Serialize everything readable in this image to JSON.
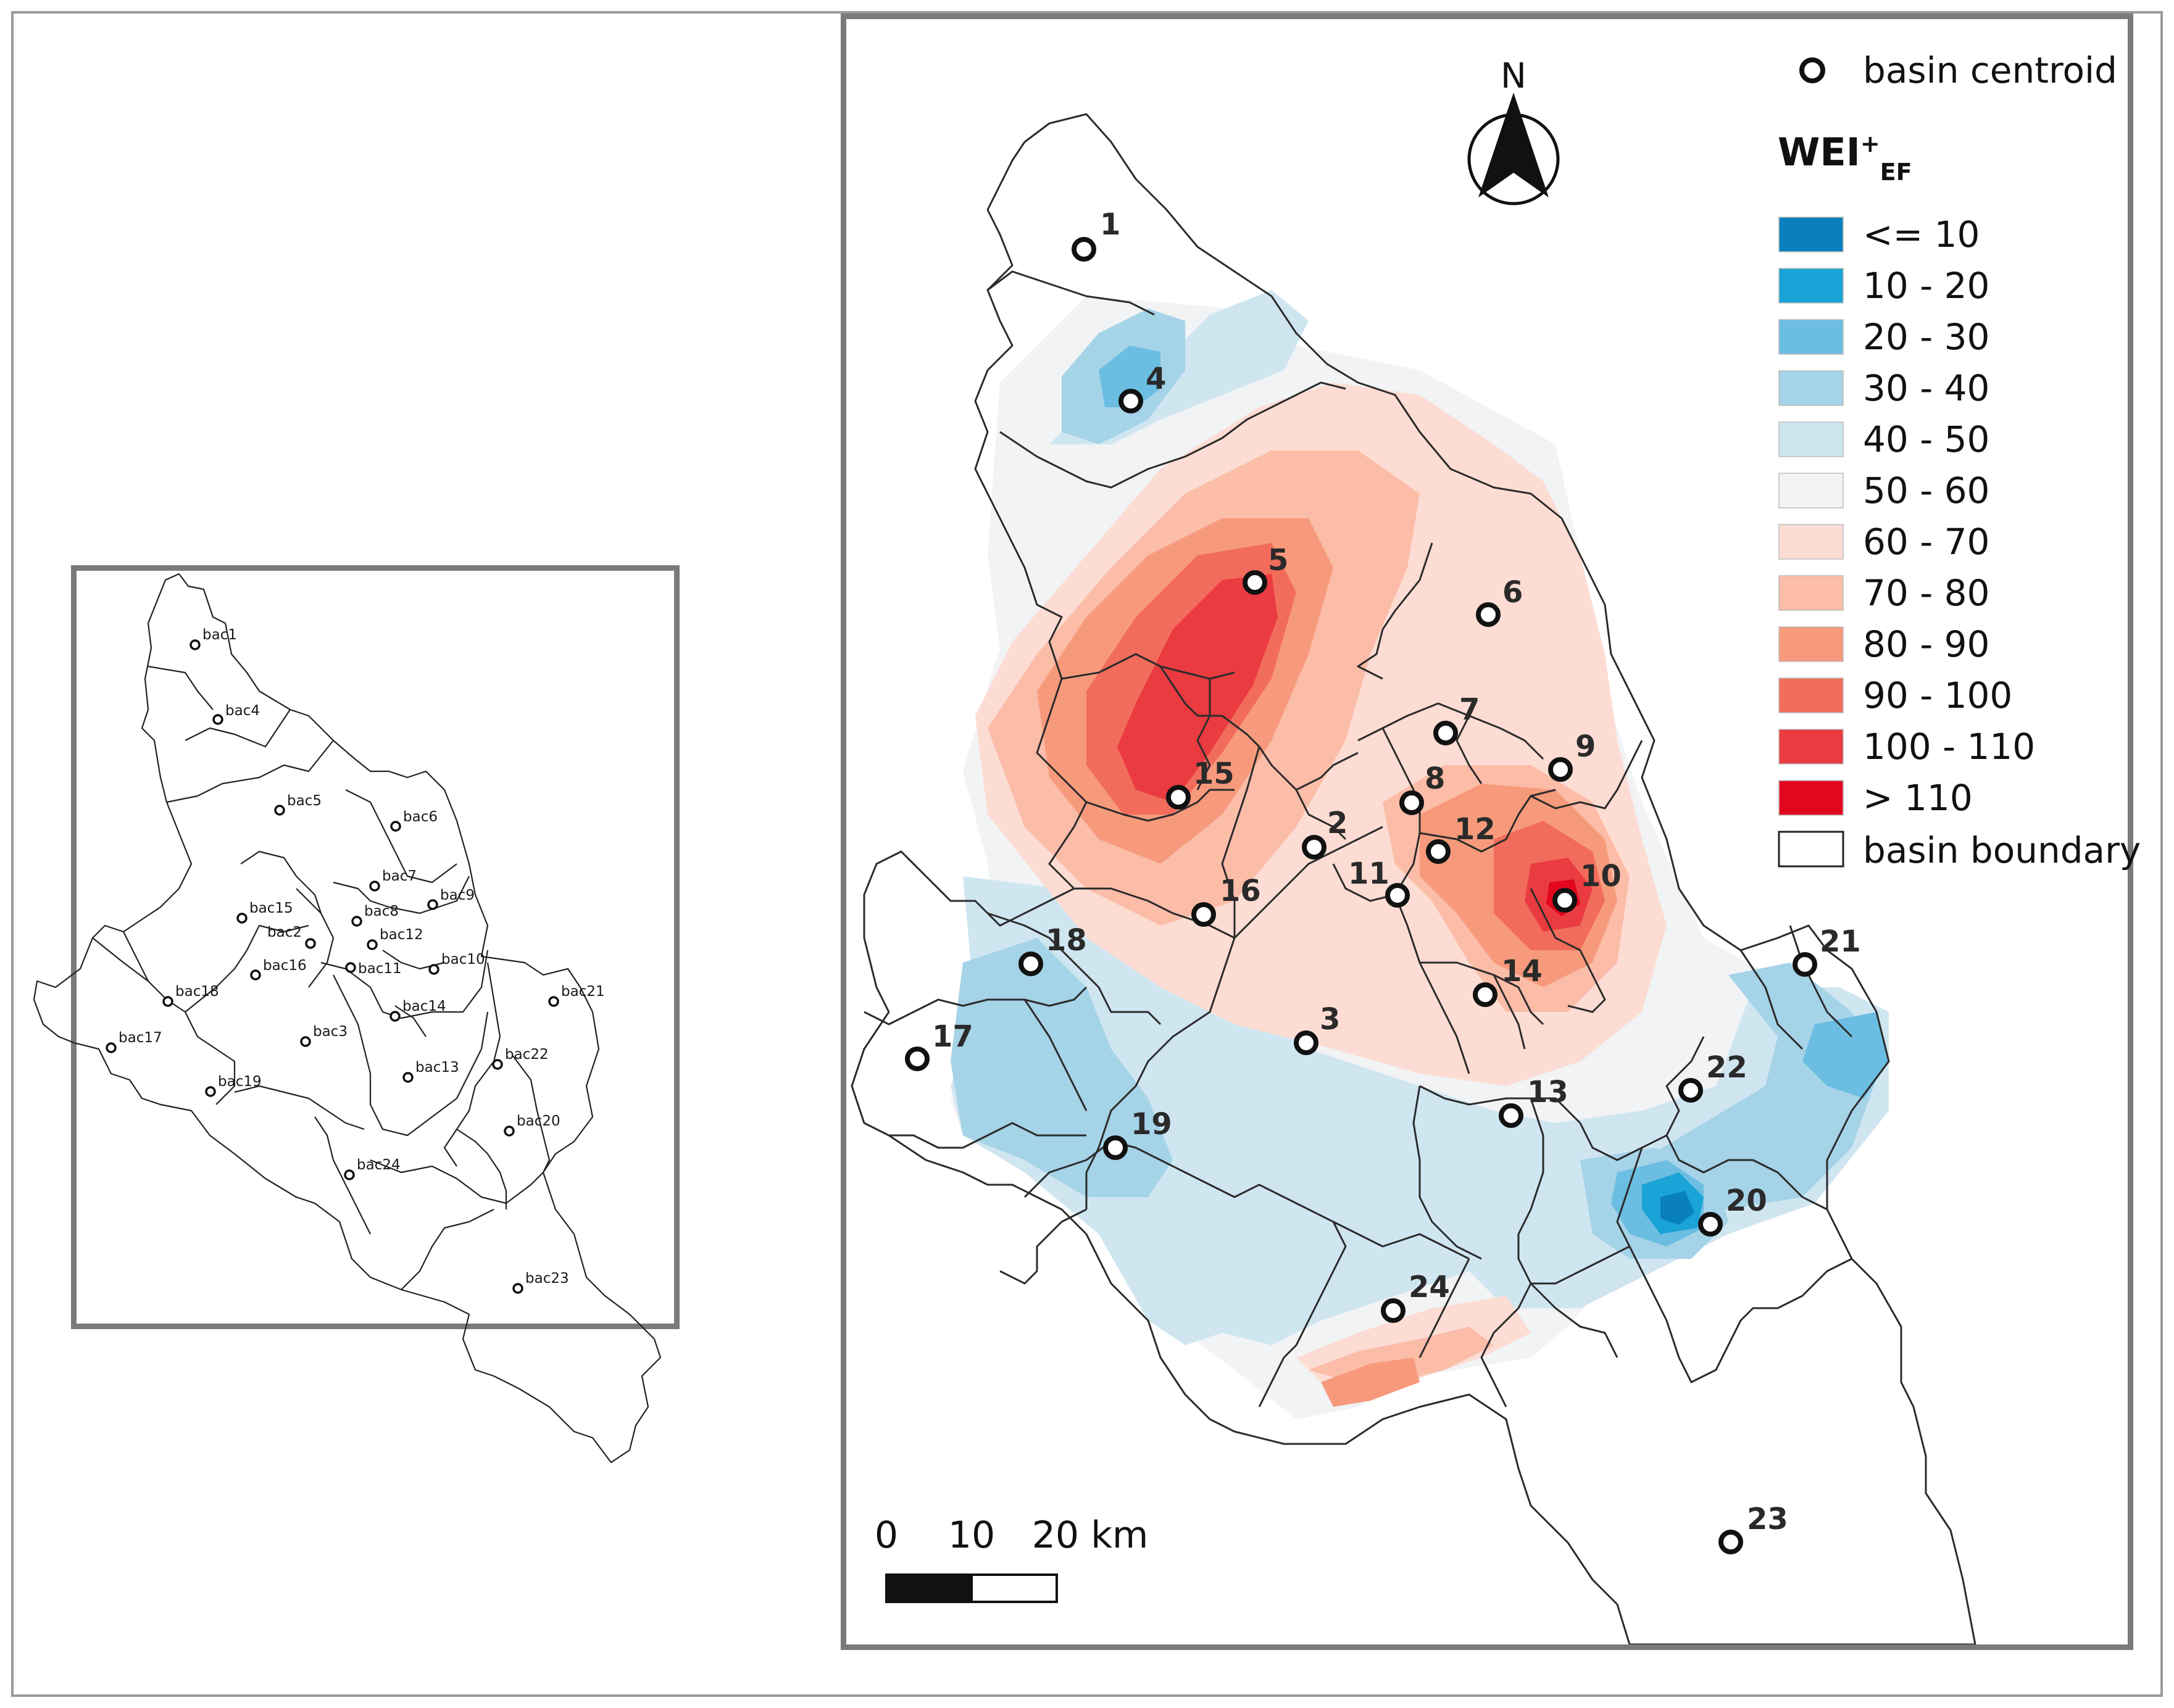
{
  "legend": {
    "centroid_label": "basin centroid",
    "title_main": "WEI",
    "title_sup": "+",
    "title_sub": "EF",
    "classes": [
      {
        "label": "<= 10",
        "color": "#0a7fbd"
      },
      {
        "label": "10 - 20",
        "color": "#1aa3d6"
      },
      {
        "label": "20 - 30",
        "color": "#6cbde2"
      },
      {
        "label": "30 - 40",
        "color": "#a5d3e8"
      },
      {
        "label": "40 - 50",
        "color": "#cfe6f1"
      },
      {
        "label": "50 - 60",
        "color": "#f1f3f4"
      },
      {
        "label": "60 - 70",
        "color": "#fcdcd3"
      },
      {
        "label": "70 - 80",
        "color": "#fbbca8"
      },
      {
        "label": "80 - 90",
        "color": "#f79a7c"
      },
      {
        "label": "90 - 100",
        "color": "#f26c5c"
      },
      {
        "label": "100 - 110",
        "color": "#ea3b40"
      },
      {
        "label": "> 110",
        "color": "#e3061f"
      }
    ],
    "boundary_label": "basin boundary"
  },
  "north_arrow": {
    "label": "N"
  },
  "scale_bar": {
    "labels": [
      "0",
      "10",
      "20 km"
    ]
  },
  "main_map": {
    "basin_labels": [
      "1",
      "2",
      "3",
      "4",
      "5",
      "6",
      "7",
      "8",
      "9",
      "10",
      "11",
      "12",
      "13",
      "14",
      "15",
      "16",
      "17",
      "18",
      "19",
      "20",
      "21",
      "22",
      "23",
      "24"
    ]
  },
  "inset_map": {
    "basin_labels": [
      "bac1",
      "bac2",
      "bac3",
      "bac4",
      "bac5",
      "bac6",
      "bac7",
      "bac8",
      "bac9",
      "bac10",
      "bac11",
      "bac12",
      "bac13",
      "bac14",
      "bac15",
      "bac16",
      "bac17",
      "bac18",
      "bac19",
      "bac20",
      "bac21",
      "bac22",
      "bac23",
      "bac24"
    ]
  }
}
